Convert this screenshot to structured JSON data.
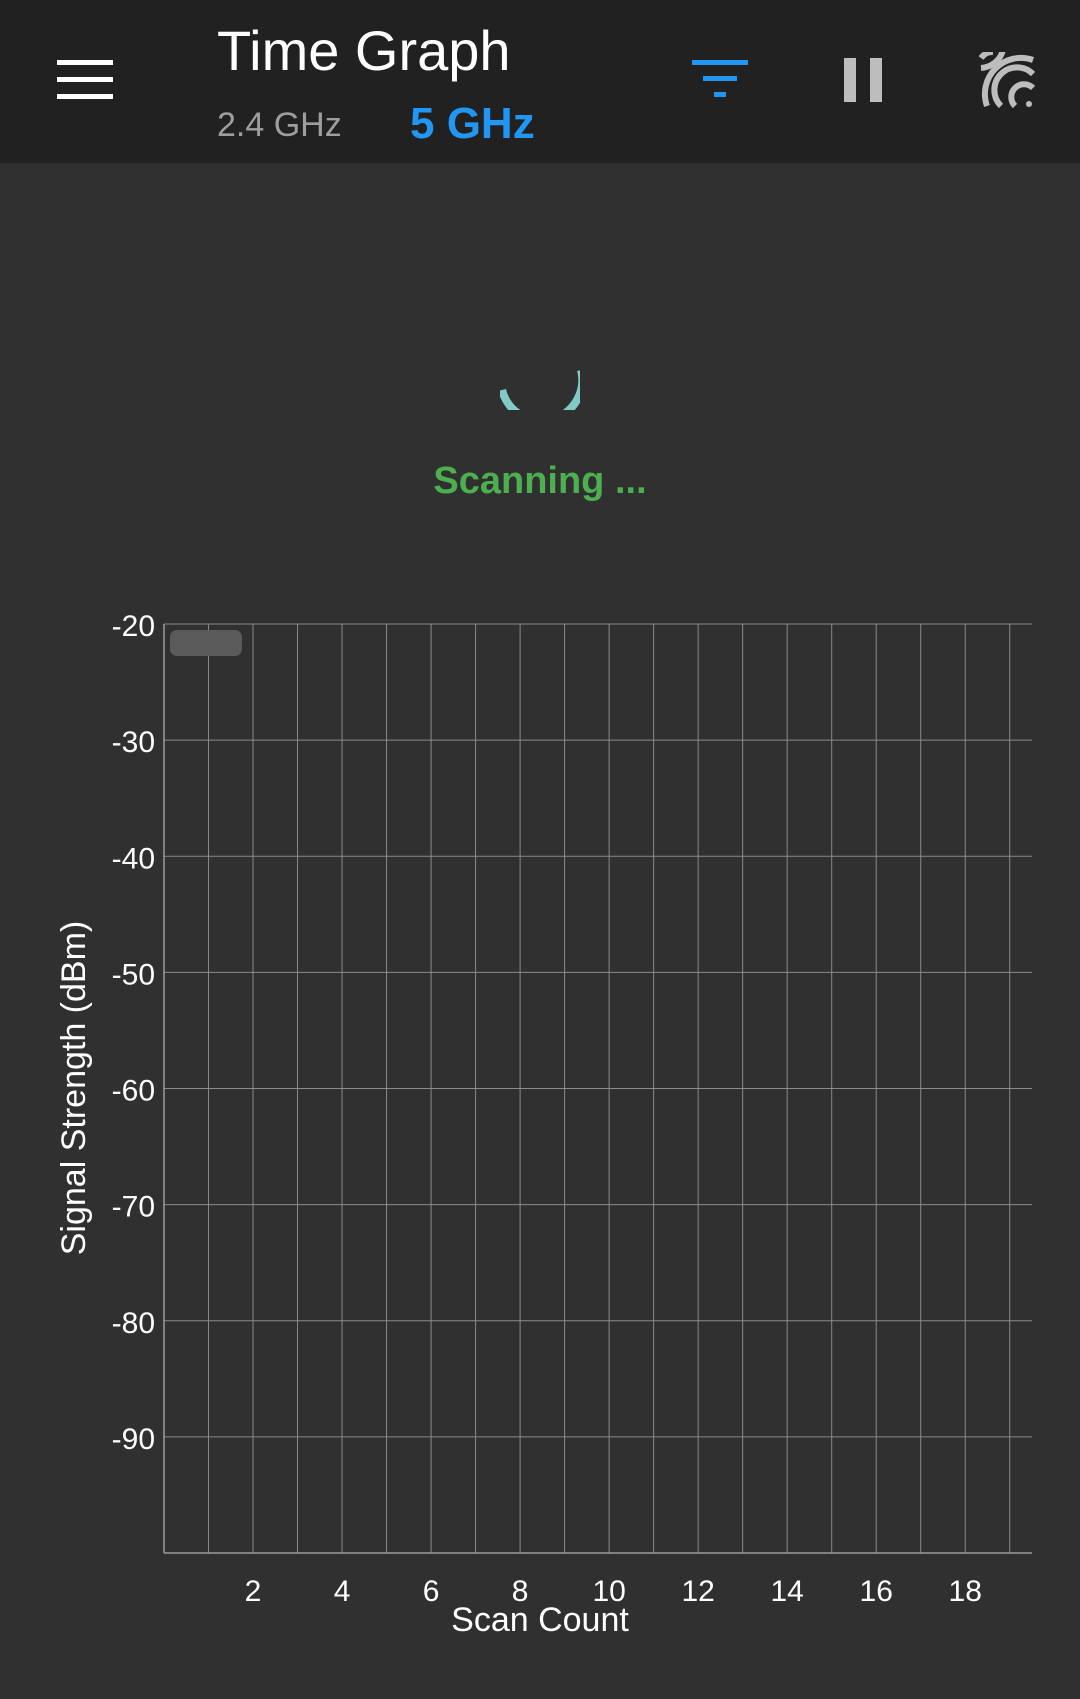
{
  "appbar": {
    "title": "Time Graph",
    "bands": [
      {
        "label": "2.4 GHz",
        "selected": false
      },
      {
        "label": "5 GHz",
        "selected": true
      }
    ],
    "icons": {
      "menu": "menu-icon",
      "filter": "filter-icon",
      "pause": "pause-icon",
      "wifi": "wifi-scan-icon"
    },
    "colors": {
      "background": "#212121",
      "accent": "#2196f3",
      "inactive": "#9e9e9e"
    }
  },
  "status": {
    "text": "Scanning ...",
    "color": "#4caf50",
    "spinner_color": "#80cbc4"
  },
  "chart_data": {
    "type": "line",
    "title": "",
    "xlabel": "Scan Count",
    "ylabel": "Signal Strength (dBm)",
    "xlim": [
      0,
      19.5
    ],
    "ylim": [
      -100,
      -20
    ],
    "x_ticks": [
      "2",
      "4",
      "6",
      "8",
      "10",
      "12",
      "14",
      "16",
      "18",
      "2"
    ],
    "y_ticks": [
      "-20",
      "-30",
      "-40",
      "-50",
      "-60",
      "-70",
      "-80",
      "-90"
    ],
    "series": [],
    "grid": true,
    "legend": "top-left",
    "legend_entries": []
  }
}
